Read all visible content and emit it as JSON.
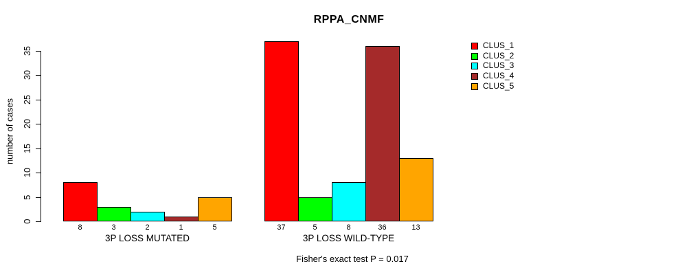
{
  "title": "RPPA_CNMF",
  "footer": "Fisher's exact test P = 0.017",
  "y_axis": {
    "label": "number of cases"
  },
  "legend_colors": {
    "red": "#FF0000",
    "green": "#00FF00",
    "cyan": "#00FFFF",
    "brown": "#A52A2A",
    "orange": "#FFA500"
  },
  "chart_data": {
    "type": "bar",
    "title": "RPPA_CNMF",
    "xlabel": "",
    "ylabel": "number of cases",
    "ylim": [
      0,
      37
    ],
    "y_ticks": [
      0,
      5,
      10,
      15,
      20,
      25,
      30,
      35
    ],
    "grid": false,
    "legend_position": "top-right",
    "bar_value_labels": true,
    "categories": [
      "3P LOSS MUTATED",
      "3P LOSS WILD-TYPE"
    ],
    "series": [
      {
        "name": "CLUS_1",
        "color": "#FF0000",
        "values": [
          8,
          37
        ]
      },
      {
        "name": "CLUS_2",
        "color": "#00FF00",
        "values": [
          3,
          5
        ]
      },
      {
        "name": "CLUS_3",
        "color": "#00FFFF",
        "values": [
          2,
          8
        ]
      },
      {
        "name": "CLUS_4",
        "color": "#A52A2A",
        "values": [
          1,
          36
        ]
      },
      {
        "name": "CLUS_5",
        "color": "#FFA500",
        "values": [
          5,
          13
        ]
      }
    ],
    "annotation": "Fisher's exact test P = 0.017"
  }
}
